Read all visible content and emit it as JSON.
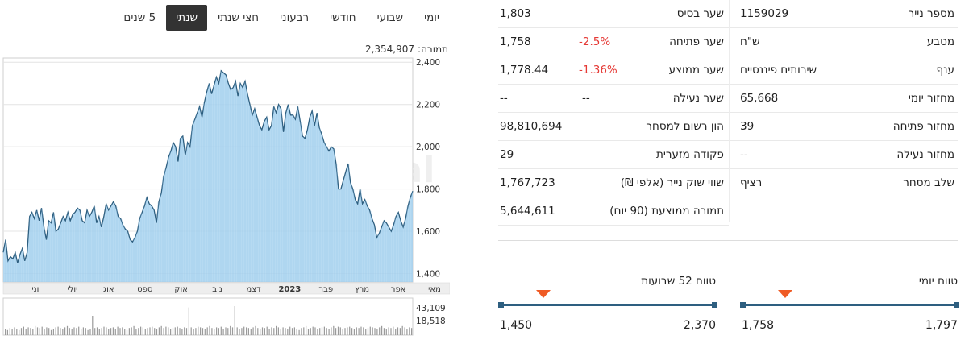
{
  "tabs": [
    {
      "label": "יומי",
      "active": false
    },
    {
      "label": "שבועי",
      "active": false
    },
    {
      "label": "חודשי",
      "active": false
    },
    {
      "label": "רבעוני",
      "active": false
    },
    {
      "label": "חצי שנתי",
      "active": false
    },
    {
      "label": "שנתי",
      "active": true
    },
    {
      "label": "5 שנים",
      "active": false
    }
  ],
  "turnover": {
    "label": "תמורה:",
    "value": "2,354,907"
  },
  "watermark": {
    "brand": "Bizportal"
  },
  "chart_data": {
    "type": "area",
    "series": [
      {
        "values": [
          1500,
          1560,
          1460,
          1480,
          1470,
          1500,
          1450,
          1490,
          1520,
          1460,
          1500,
          1670,
          1690,
          1660,
          1700,
          1650,
          1710,
          1620,
          1560,
          1650,
          1640,
          1690,
          1600,
          1610,
          1640,
          1670,
          1650,
          1690,
          1650,
          1680,
          1690,
          1710,
          1700,
          1650,
          1640,
          1700,
          1670,
          1690,
          1720,
          1640,
          1670,
          1620,
          1670,
          1730,
          1700,
          1720,
          1740,
          1720,
          1670,
          1660,
          1630,
          1610,
          1600,
          1560,
          1550,
          1570,
          1600,
          1660,
          1690,
          1720,
          1760,
          1730,
          1720,
          1700,
          1640,
          1740,
          1780,
          1860,
          1900,
          1950,
          1980,
          2020,
          2000,
          1930,
          2040,
          2050,
          1960,
          2020,
          2000,
          2100,
          2130,
          2160,
          2190,
          2140,
          2210,
          2260,
          2300,
          2250,
          2290,
          2330,
          2300,
          2360,
          2350,
          2340,
          2300,
          2270,
          2280,
          2310,
          2240,
          2300,
          2280,
          2310,
          2250,
          2200,
          2150,
          2180,
          2140,
          2100,
          2080,
          2120,
          2140,
          2080,
          2100,
          2190,
          2160,
          2200,
          2180,
          2070,
          2160,
          2200,
          2150,
          2150,
          2130,
          2190,
          2120,
          2050,
          2040,
          2080,
          2140,
          2170,
          2100,
          2160,
          2090,
          2060,
          2020,
          2000,
          1980,
          2000,
          1990,
          1920,
          1800,
          1800,
          1840,
          1880,
          1920,
          1830,
          1800,
          1750,
          1730,
          1800,
          1730,
          1750,
          1720,
          1700,
          1660,
          1630,
          1570,
          1590,
          1620,
          1650,
          1640,
          1620,
          1600,
          1630,
          1670,
          1690,
          1650,
          1620,
          1660,
          1720,
          1760,
          1790
        ]
      }
    ],
    "volume_values": [
      10,
      9,
      11,
      10,
      12,
      10,
      9,
      11,
      13,
      10,
      12,
      11,
      10,
      14,
      12,
      11,
      13,
      10,
      12,
      11,
      9,
      10,
      12,
      13,
      11,
      10,
      12,
      14,
      11,
      10,
      12,
      11,
      13,
      10,
      12,
      11,
      9,
      10,
      30,
      11,
      12,
      10,
      11,
      13,
      12,
      10,
      11,
      12,
      10,
      13,
      11,
      12,
      10,
      9,
      11,
      12,
      14,
      10,
      11,
      13,
      12,
      10,
      11,
      12,
      13,
      11,
      10,
      12,
      14,
      11,
      13,
      12,
      10,
      11,
      12,
      13,
      11,
      10,
      12,
      11,
      43,
      12,
      10,
      11,
      13,
      12,
      11,
      10,
      12,
      14,
      11,
      10,
      12,
      11,
      13,
      10,
      12,
      11,
      14,
      12,
      45,
      12,
      10,
      11,
      13,
      12,
      11,
      10,
      12,
      14,
      11,
      10,
      12,
      11,
      13,
      10,
      12,
      11,
      14,
      12,
      10,
      12,
      11,
      10,
      13,
      11,
      12,
      10,
      9,
      11,
      12,
      14,
      10,
      11,
      13,
      12,
      10,
      11,
      12,
      13,
      11,
      10,
      12,
      14,
      11,
      13,
      12,
      10,
      11,
      12,
      13,
      11,
      10,
      12,
      11,
      13,
      12,
      10,
      11,
      13,
      12,
      11,
      10,
      12,
      14,
      11,
      10,
      12,
      11,
      13,
      10,
      12,
      11,
      14,
      12,
      10,
      12,
      11
    ],
    "y_ticks": [
      "2,400",
      "2,200",
      "2,000",
      "1,800",
      "1,600",
      "1,400"
    ],
    "y_tick_values": [
      2400,
      2200,
      2000,
      1800,
      1600,
      1400
    ],
    "ylim": [
      1360,
      2420
    ],
    "x_ticks": [
      "יוני",
      "יולי",
      "אוג",
      "ספט",
      "אוק",
      "נוב",
      "דצמ",
      "2023",
      "פבר",
      "מרץ",
      "אפר",
      "מאי"
    ],
    "volume_ticks": [
      "43,109",
      "18,518"
    ],
    "volume_ylim": [
      0,
      55
    ],
    "grid": true
  },
  "info_left": [
    {
      "label": "שער בסיס",
      "value": "1,803",
      "change": ""
    },
    {
      "label": "שער פתיחה",
      "value": "1,758",
      "change": "-2.5%"
    },
    {
      "label": "שער ממוצע",
      "value": "1,778.44",
      "change": "-1.36%"
    },
    {
      "label": "שער נעילה",
      "value": "--",
      "change": "--"
    },
    {
      "label": "הון רשום למסחר",
      "value": "98,810,694",
      "change": ""
    },
    {
      "label": "פקודה מזערית",
      "value": "29",
      "change": ""
    },
    {
      "label": "שווי שוק נייר (אלפי ₪)",
      "value": "1,767,723",
      "change": ""
    },
    {
      "label": "תמורה ממוצעת (90 יום)",
      "value": "5,644,611",
      "change": ""
    }
  ],
  "info_right": [
    {
      "label": "מספר נייר",
      "value": "1159029"
    },
    {
      "label": "מטבע",
      "value": "ש\"ח"
    },
    {
      "label": "ענף",
      "value": "שירותים פיננסיים"
    },
    {
      "label": "מחזור יומי",
      "value": "65,668"
    },
    {
      "label": "מחזור פתיחה",
      "value": "39"
    },
    {
      "label": "מחזור נעילה",
      "value": "--"
    },
    {
      "label": "שלב מסחר",
      "value": "רציף"
    }
  ],
  "range_52w": {
    "title": "טווח 52 שבועות",
    "low": "1,450",
    "high": "2,370",
    "position": 0.8
  },
  "range_daily": {
    "title": "טווח יומי",
    "low": "1,758",
    "high": "1,797",
    "position": 0.8
  },
  "colors": {
    "area_fill": "#a9d3f0",
    "area_line": "#2e5f80",
    "range_bar": "#2e5f80",
    "marker": "#ef5b25",
    "negative": "#e53935"
  }
}
